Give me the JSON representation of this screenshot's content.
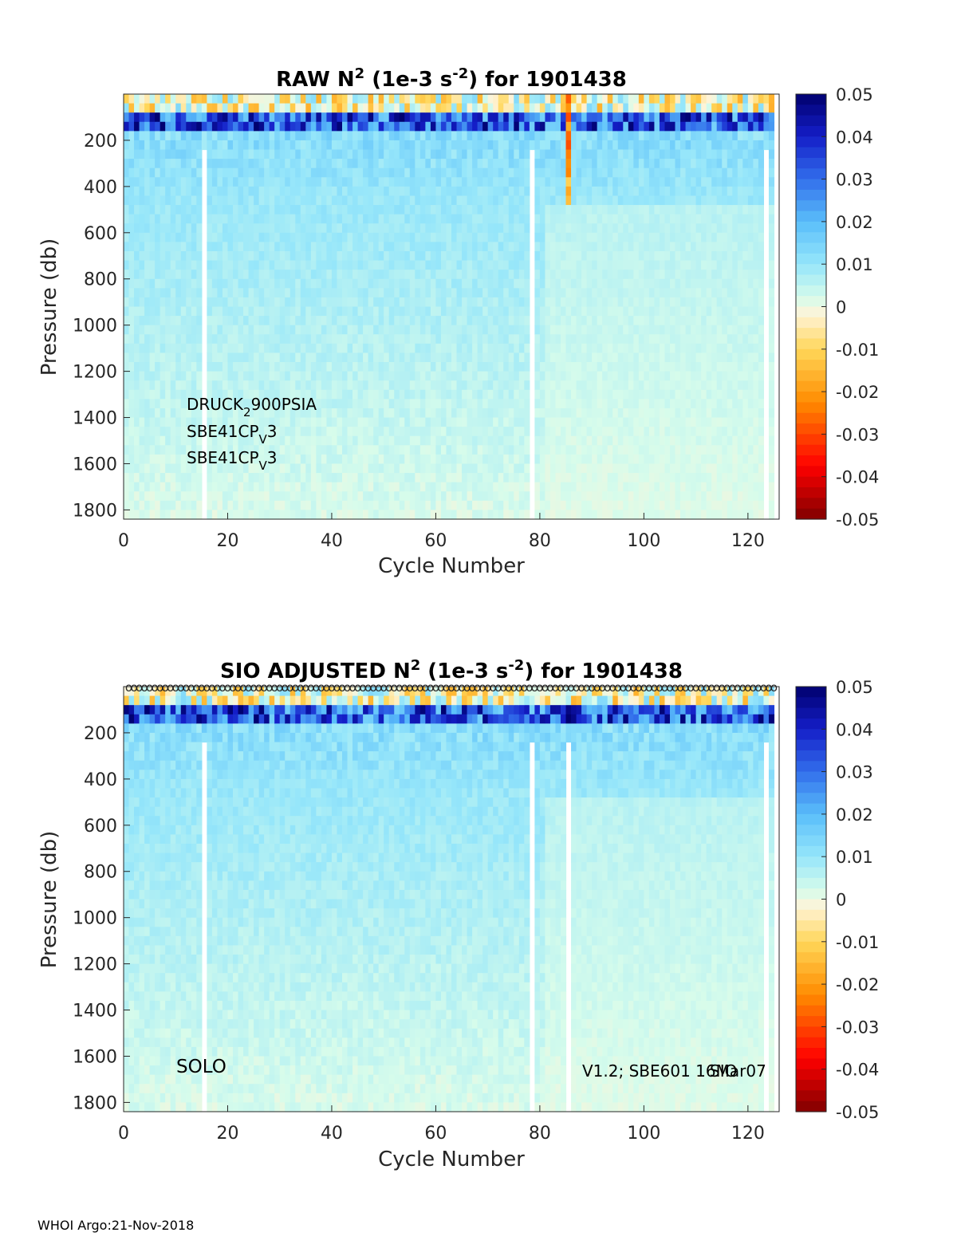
{
  "footer": "WHOI Argo:21-Nov-2018",
  "chart_data": [
    {
      "type": "heatmap",
      "title": {
        "prefix": "RAW N",
        "sup1": "2",
        "middle": " (1e-3 s",
        "sup2": "-2",
        "suffix": ") for 1901438"
      },
      "xlabel": "Cycle Number",
      "ylabel": "Pressure (db)",
      "xlim": [
        0,
        126
      ],
      "ylim": [
        0,
        1840
      ],
      "y_reversed": true,
      "xticks": [
        0,
        20,
        40,
        60,
        80,
        100,
        120
      ],
      "yticks": [
        200,
        400,
        600,
        800,
        1000,
        1200,
        1400,
        1600,
        1800
      ],
      "colorbar": {
        "clim": [
          -0.05,
          0.05
        ],
        "ticks": [
          0.05,
          0.04,
          0.03,
          0.02,
          0.01,
          0,
          -0.01,
          -0.02,
          -0.03,
          -0.04,
          -0.05
        ],
        "ticklabels": [
          "0.05",
          "0.04",
          "0.03",
          "0.02",
          "0.01",
          "0",
          "-0.01",
          "-0.02",
          "-0.03",
          "-0.04",
          "-0.05"
        ]
      },
      "gap_cycles": [
        15,
        78,
        123
      ],
      "annotations": [
        {
          "base": "DRUCK",
          "sub": "2",
          "rest": "900PSIA"
        },
        {
          "base": "SBE41CP",
          "sub": "V",
          "rest": "3"
        },
        {
          "base": "SBE41CP",
          "sub": "V",
          "rest": "3"
        }
      ]
    },
    {
      "type": "heatmap",
      "title": {
        "prefix": "SIO  ADJUSTED N",
        "sup1": "2",
        "middle": " (1e-3 s",
        "sup2": "-2",
        "suffix": ") for 1901438"
      },
      "xlabel": "Cycle Number",
      "ylabel": "Pressure (db)",
      "xlim": [
        0,
        126
      ],
      "ylim": [
        0,
        1840
      ],
      "y_reversed": true,
      "xticks": [
        0,
        20,
        40,
        60,
        80,
        100,
        120
      ],
      "yticks": [
        200,
        400,
        600,
        800,
        1000,
        1200,
        1400,
        1600,
        1800
      ],
      "colorbar": {
        "clim": [
          -0.05,
          0.05
        ],
        "ticks": [
          0.05,
          0.04,
          0.03,
          0.02,
          0.01,
          0,
          -0.01,
          -0.02,
          -0.03,
          -0.04,
          -0.05
        ],
        "ticklabels": [
          "0.05",
          "0.04",
          "0.03",
          "0.02",
          "0.01",
          "0",
          "-0.01",
          "-0.02",
          "-0.03",
          "-0.04",
          "-0.05"
        ]
      },
      "gap_cycles": [
        15,
        78,
        85,
        123
      ],
      "marker_row": "o",
      "annotations_left": "SOLO",
      "annotations_right": [
        "V1.2; SBE601 16Mar07",
        "SIO"
      ]
    }
  ]
}
